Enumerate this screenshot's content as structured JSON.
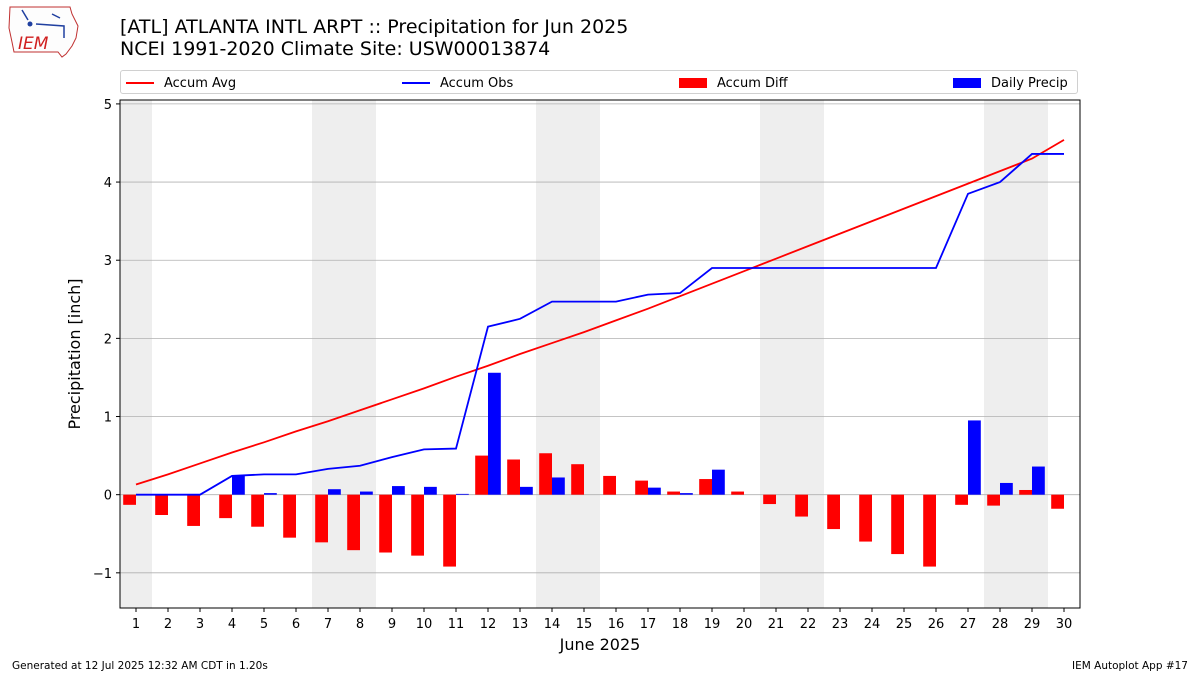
{
  "header": {
    "title_line1": "[ATL] ATLANTA INTL ARPT :: Precipitation for Jun 2025",
    "title_line2": "NCEI 1991-2020 Climate Site: USW00013874"
  },
  "logo": {
    "text": "IEM"
  },
  "legend": [
    {
      "label": "Accum Avg",
      "kind": "line",
      "color": "#ff0000"
    },
    {
      "label": "Accum Obs",
      "kind": "line",
      "color": "#0000ff"
    },
    {
      "label": "Accum Diff",
      "kind": "bar",
      "color": "#ff0000"
    },
    {
      "label": "Daily Precip",
      "kind": "bar",
      "color": "#0000ff"
    }
  ],
  "footer": {
    "left": "Generated at 12 Jul 2025 12:32 AM CDT in 1.20s",
    "right": "IEM Autoplot App #17"
  },
  "chart_data": {
    "type": "bar",
    "xlabel": "June 2025",
    "ylabel": "Precipitation [inch]",
    "xlim": [
      0.5,
      30.5
    ],
    "ylim": [
      -1.45,
      5.05
    ],
    "yticks": [
      -1,
      0,
      1,
      2,
      3,
      4,
      5
    ],
    "ytick_labels": [
      "−1",
      "0",
      "1",
      "2",
      "3",
      "4",
      "5"
    ],
    "grid": "horizontal",
    "legend_position": "top",
    "weekend_shading": [
      [
        0.5,
        1.5
      ],
      [
        6.5,
        8.5
      ],
      [
        13.5,
        15.5
      ],
      [
        20.5,
        22.5
      ],
      [
        27.5,
        29.5
      ]
    ],
    "days": [
      1,
      2,
      3,
      4,
      5,
      6,
      7,
      8,
      9,
      10,
      11,
      12,
      13,
      14,
      15,
      16,
      17,
      18,
      19,
      20,
      21,
      22,
      23,
      24,
      25,
      26,
      27,
      28,
      29,
      30
    ],
    "series": [
      {
        "name": "Accum Avg",
        "type": "line",
        "color": "#ff0000",
        "values": [
          0.13,
          0.26,
          0.4,
          0.54,
          0.67,
          0.81,
          0.94,
          1.08,
          1.22,
          1.36,
          1.51,
          1.65,
          1.8,
          1.94,
          2.08,
          2.23,
          2.38,
          2.54,
          2.7,
          2.86,
          3.02,
          3.18,
          3.34,
          3.5,
          3.66,
          3.82,
          3.98,
          4.14,
          4.3,
          4.54
        ]
      },
      {
        "name": "Accum Obs",
        "type": "line",
        "color": "#0000ff",
        "values": [
          0.0,
          0.0,
          0.0,
          0.24,
          0.26,
          0.26,
          0.33,
          0.37,
          0.48,
          0.58,
          0.59,
          2.15,
          2.25,
          2.47,
          2.47,
          2.47,
          2.56,
          2.58,
          2.9,
          2.9,
          2.9,
          2.9,
          2.9,
          2.9,
          2.9,
          2.9,
          3.85,
          4.0,
          4.36,
          4.36
        ]
      },
      {
        "name": "Accum Diff",
        "type": "bar",
        "color": "#ff0000",
        "values": [
          -0.13,
          -0.26,
          -0.4,
          -0.3,
          -0.41,
          -0.55,
          -0.61,
          -0.71,
          -0.74,
          -0.78,
          -0.92,
          0.5,
          0.45,
          0.53,
          0.39,
          0.24,
          0.18,
          0.04,
          0.2,
          0.04,
          -0.12,
          -0.28,
          -0.44,
          -0.6,
          -0.76,
          -0.92,
          -0.13,
          -0.14,
          0.06,
          -0.18
        ]
      },
      {
        "name": "Daily Precip",
        "type": "bar",
        "color": "#0000ff",
        "values": [
          0.0,
          0.0,
          0.0,
          0.24,
          0.02,
          0.0,
          0.07,
          0.04,
          0.11,
          0.1,
          0.01,
          1.56,
          0.1,
          0.22,
          0.0,
          0.0,
          0.09,
          0.02,
          0.32,
          0.0,
          0.0,
          0.0,
          0.0,
          0.0,
          0.0,
          0.0,
          0.95,
          0.15,
          0.36,
          0.0
        ]
      }
    ]
  }
}
